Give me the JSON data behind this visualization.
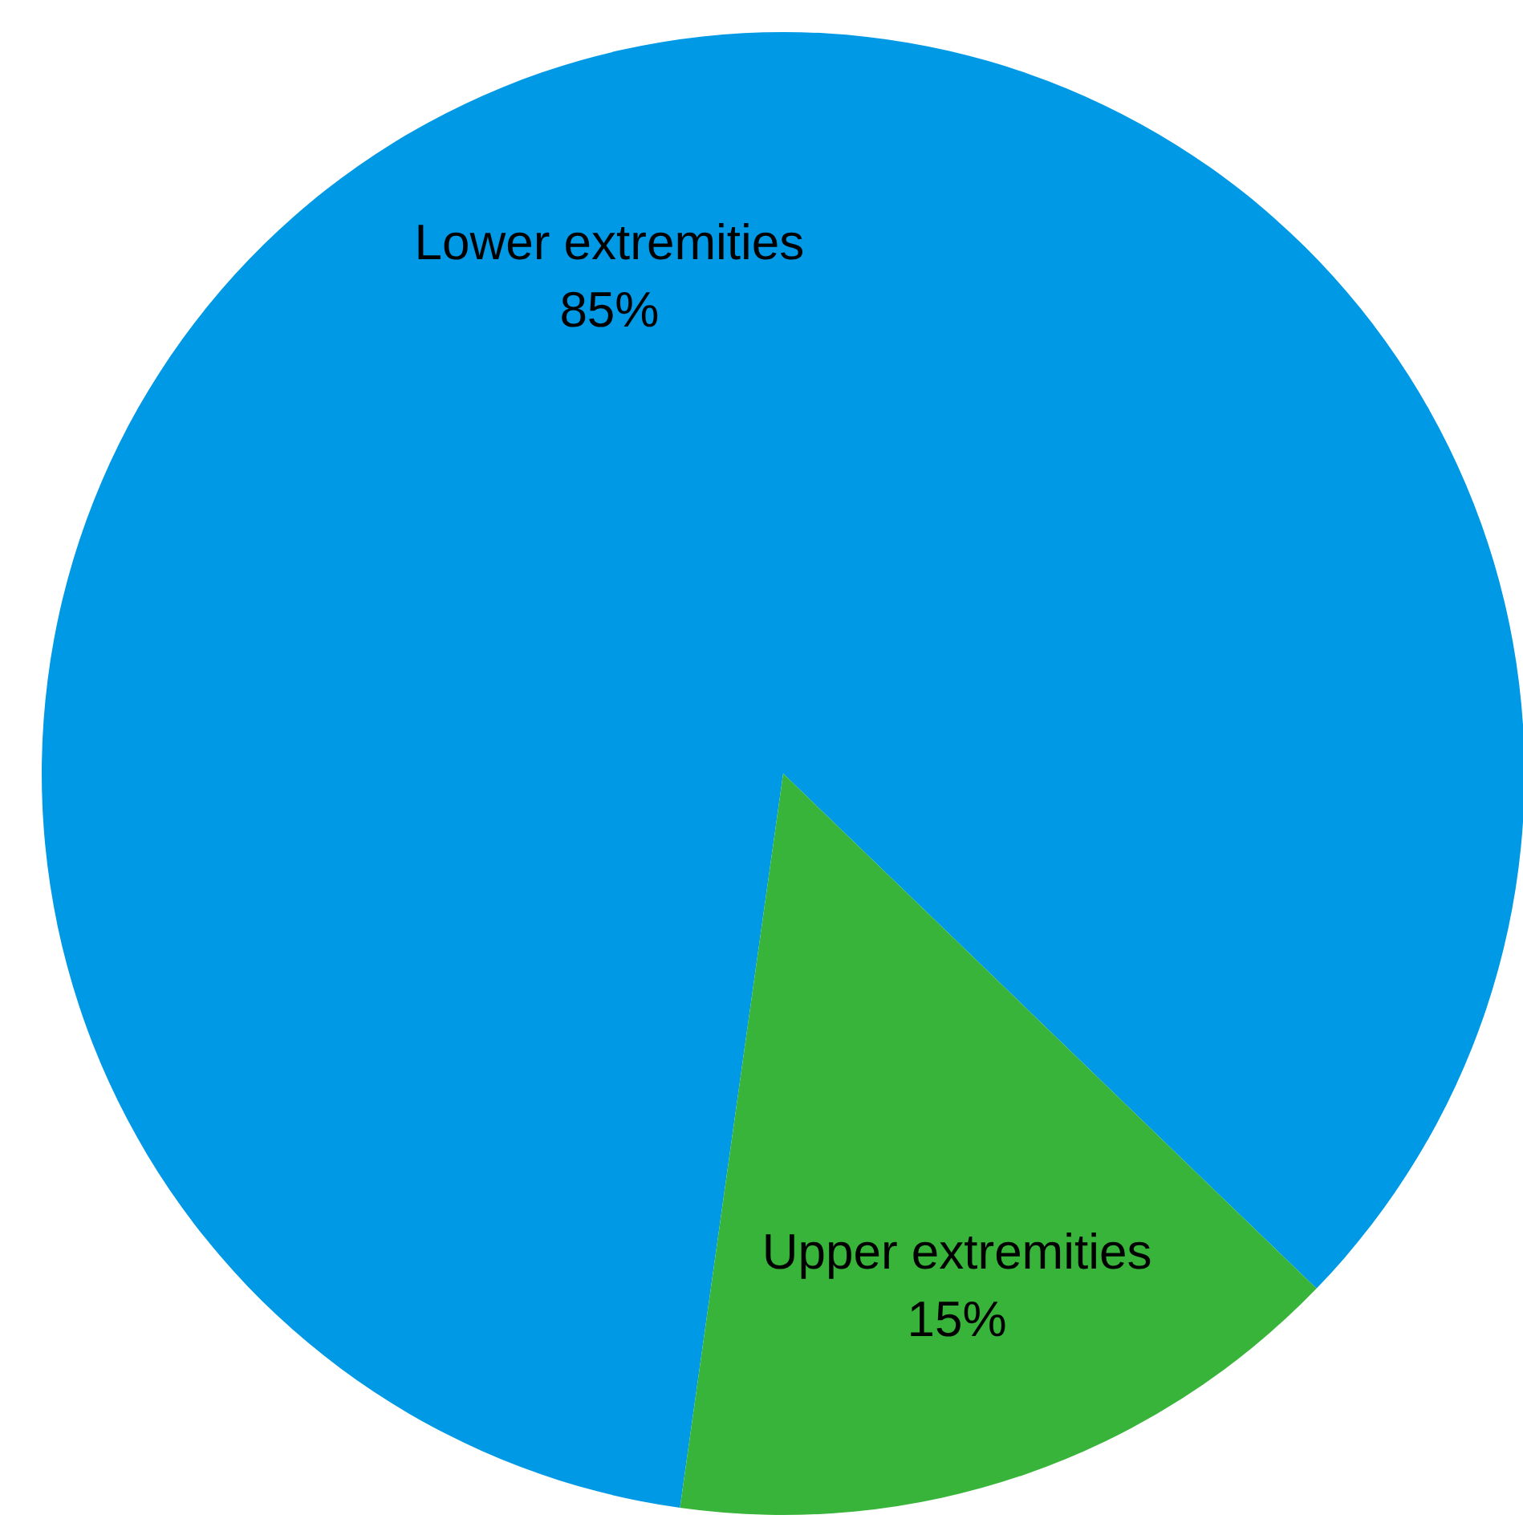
{
  "chart_data": {
    "type": "pie",
    "categories": [
      "Lower extremities",
      "Upper extremities"
    ],
    "values": [
      85,
      15
    ],
    "colors": [
      "#0099e6",
      "#38b43a"
    ],
    "value_labels": [
      "85%",
      "15%"
    ]
  }
}
